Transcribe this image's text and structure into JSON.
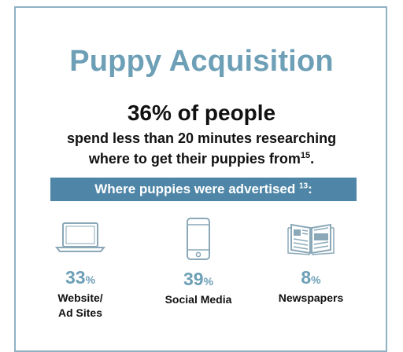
{
  "title": "Puppy Acquisition",
  "headline": "36% of people",
  "subline_1": "spend less than 20 minutes researching",
  "subline_2": "where to get their puppies from",
  "subline_2_ref": "15",
  "subline_2_end": ".",
  "banner_text": "Where puppies were advertised ",
  "banner_ref": "13",
  "banner_end": ":",
  "stats": [
    {
      "value": "33",
      "unit": "%",
      "label": "Website/\nAd Sites",
      "icon": "laptop-icon"
    },
    {
      "value": "39",
      "unit": "%",
      "label": "Social Media",
      "icon": "phone-icon"
    },
    {
      "value": "8",
      "unit": "%",
      "label": "Newspapers",
      "icon": "newspaper-icon"
    }
  ],
  "colors": {
    "accent": "#6d9fb6",
    "banner": "#4f86a7",
    "border": "#8fb1c3",
    "icon": "#8aa8b8"
  }
}
